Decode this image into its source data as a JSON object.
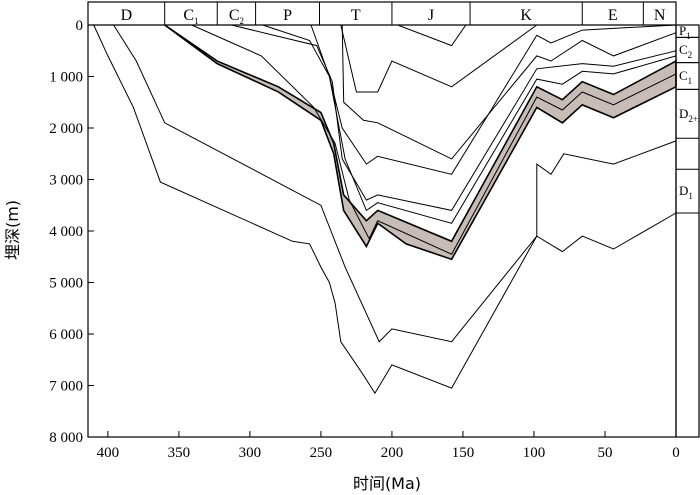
{
  "chart_data": {
    "type": "line",
    "title": "",
    "xlabel": "时间(Ma)",
    "ylabel": "埋深(m)",
    "xlim": [
      414,
      0
    ],
    "ylim": [
      0,
      8000
    ],
    "x_ticks": [
      "400",
      "350",
      "300",
      "250",
      "200",
      "150",
      "100",
      "50",
      "0"
    ],
    "y_ticks": [
      "0",
      "1 000",
      "2 000",
      "3 000",
      "4 000",
      "5 000",
      "6 000",
      "7 000",
      "8 000"
    ],
    "periods": [
      {
        "label": "D",
        "sub": "",
        "start": 414,
        "end": 360
      },
      {
        "label": "C",
        "sub": "1",
        "start": 360,
        "end": 323
      },
      {
        "label": "C",
        "sub": "2",
        "start": 323,
        "end": 296
      },
      {
        "label": "P",
        "sub": "",
        "start": 296,
        "end": 251
      },
      {
        "label": "T",
        "sub": "",
        "start": 251,
        "end": 200
      },
      {
        "label": "J",
        "sub": "",
        "start": 200,
        "end": 145
      },
      {
        "label": "K",
        "sub": "",
        "start": 145,
        "end": 66
      },
      {
        "label": "E",
        "sub": "",
        "start": 66,
        "end": 23
      },
      {
        "label": "N",
        "sub": "",
        "start": 23,
        "end": 0
      }
    ],
    "strata": [
      {
        "label": "P",
        "sub": "1",
        "depth_top": 0,
        "depth_bottom": 240
      },
      {
        "label": "C",
        "sub": "2",
        "depth_top": 240,
        "depth_bottom": 730
      },
      {
        "label": "C",
        "sub": "1",
        "depth_top": 730,
        "depth_bottom": 1250
      },
      {
        "label": "D",
        "sub": "2+3",
        "depth_top": 1250,
        "depth_bottom": 2200
      },
      {
        "label": "D",
        "sub": "1",
        "depth_top": 2800,
        "depth_bottom": 3650
      }
    ],
    "shaded_band": {
      "color": "#c8bdb6",
      "top": [
        [
          360,
          0
        ],
        [
          323,
          700
        ],
        [
          280,
          1200
        ],
        [
          250,
          1700
        ],
        [
          241,
          2300
        ],
        [
          234,
          3300
        ],
        [
          218,
          3800
        ],
        [
          210,
          3600
        ],
        [
          158,
          4200
        ],
        [
          98,
          1200
        ],
        [
          80,
          1450
        ],
        [
          66,
          1100
        ],
        [
          44,
          1350
        ],
        [
          0,
          700
        ]
      ],
      "bottom": [
        [
          360,
          0
        ],
        [
          323,
          750
        ],
        [
          280,
          1300
        ],
        [
          250,
          1850
        ],
        [
          241,
          2500
        ],
        [
          234,
          3600
        ],
        [
          218,
          4300
        ],
        [
          210,
          3850
        ],
        [
          190,
          4250
        ],
        [
          158,
          4550
        ],
        [
          98,
          1600
        ],
        [
          80,
          1900
        ],
        [
          66,
          1550
        ],
        [
          44,
          1800
        ],
        [
          0,
          1200
        ]
      ]
    },
    "series": [
      {
        "values": [
          [
            396,
            0
          ],
          [
            380,
            700
          ],
          [
            360,
            1900
          ],
          [
            250,
            3500
          ],
          [
            233,
            4700
          ],
          [
            209,
            6150
          ],
          [
            200,
            5900
          ],
          [
            158,
            6150
          ],
          [
            98,
            4100
          ],
          [
            80,
            4400
          ],
          [
            66,
            4100
          ],
          [
            44,
            4350
          ],
          [
            0,
            3650
          ]
        ]
      },
      {
        "values": [
          [
            410,
            0
          ],
          [
            400,
            600
          ],
          [
            382,
            1600
          ],
          [
            363,
            3050
          ],
          [
            270,
            4200
          ],
          [
            258,
            4250
          ],
          [
            250,
            4700
          ],
          [
            244,
            5000
          ],
          [
            240,
            5400
          ],
          [
            236,
            6150
          ],
          [
            220,
            6800
          ],
          [
            212,
            7150
          ],
          [
            200,
            6600
          ],
          [
            158,
            7050
          ],
          [
            98,
            4100
          ]
        ]
      },
      {
        "values": [
          [
            98,
            4100
          ],
          [
            98,
            2700
          ],
          [
            88,
            2900
          ],
          [
            79,
            2500
          ],
          [
            44,
            2700
          ],
          [
            0,
            2250
          ]
        ]
      },
      {
        "values": [
          [
            341,
            0
          ],
          [
            292,
            600
          ],
          [
            255,
            1600
          ],
          [
            240,
            2300
          ],
          [
            230,
            3400
          ],
          [
            216,
            4150
          ],
          [
            210,
            3800
          ],
          [
            158,
            4450
          ],
          [
            98,
            1400
          ],
          [
            80,
            1650
          ],
          [
            66,
            1300
          ],
          [
            44,
            1550
          ],
          [
            0,
            950
          ]
        ]
      },
      {
        "values": [
          [
            313,
            0
          ],
          [
            253,
            400
          ],
          [
            242,
            1100
          ],
          [
            235,
            2600
          ],
          [
            218,
            3400
          ],
          [
            210,
            3300
          ],
          [
            158,
            3600
          ],
          [
            98,
            850
          ],
          [
            66,
            750
          ],
          [
            44,
            800
          ],
          [
            0,
            500
          ]
        ]
      },
      {
        "values": [
          [
            291,
            0
          ],
          [
            258,
            300
          ],
          [
            244,
            1000
          ],
          [
            233,
            2600
          ],
          [
            218,
            3600
          ],
          [
            210,
            3450
          ],
          [
            158,
            3850
          ],
          [
            98,
            1050
          ],
          [
            80,
            1150
          ],
          [
            66,
            900
          ],
          [
            44,
            950
          ],
          [
            0,
            600
          ]
        ]
      },
      {
        "values": [
          [
            257,
            0
          ],
          [
            244,
            1000
          ],
          [
            235,
            2000
          ],
          [
            218,
            2700
          ],
          [
            210,
            2550
          ],
          [
            158,
            2900
          ],
          [
            98,
            200
          ],
          [
            88,
            350
          ],
          [
            66,
            100
          ],
          [
            0,
            0
          ]
        ]
      },
      {
        "values": [
          [
            236,
            0
          ],
          [
            225,
            1300
          ],
          [
            210,
            1300
          ],
          [
            200,
            700
          ],
          [
            158,
            1200
          ],
          [
            98,
            0
          ]
        ]
      },
      {
        "values": [
          [
            196,
            0
          ],
          [
            158,
            400
          ],
          [
            148,
            0
          ]
        ]
      },
      {
        "values": [
          [
            235,
            0
          ],
          [
            234,
            1500
          ],
          [
            220,
            1850
          ],
          [
            210,
            1900
          ],
          [
            158,
            2600
          ],
          [
            98,
            600
          ],
          [
            88,
            700
          ],
          [
            66,
            300
          ],
          [
            44,
            600
          ],
          [
            0,
            150
          ]
        ]
      }
    ],
    "grid": false,
    "legend": "none"
  }
}
